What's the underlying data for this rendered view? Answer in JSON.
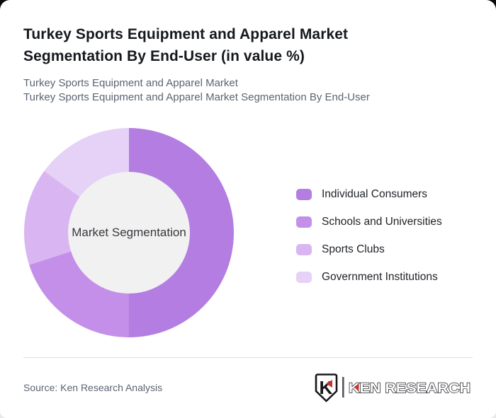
{
  "header": {
    "title": "Turkey Sports Equipment and Apparel Market Segmentation By End-User (in value %)",
    "subtitle_lines": [
      "Turkey Sports Equipment and Apparel Market",
      "Turkey Sports Equipment and Apparel Market Segmentation By End-User"
    ]
  },
  "chart_data": {
    "type": "pie",
    "variant": "donut",
    "title": "Turkey Sports Equipment and Apparel Market Segmentation By End-User (in value %)",
    "center_label": "Market Segmentation",
    "categories": [
      "Individual Consumers",
      "Schools and Universities",
      "Sports Clubs",
      "Government Institutions"
    ],
    "values": [
      50,
      20,
      15,
      15
    ],
    "unit": "value %",
    "colors": [
      "#b37de2",
      "#c48fe8",
      "#d9b6f1",
      "#e5d2f6"
    ],
    "start_angle_deg": 0,
    "direction": "clockwise",
    "inner_hole_color": "#f1f1f1",
    "legend_position": "right"
  },
  "footer": {
    "source": "Source: Ken Research Analysis",
    "logo": {
      "badge_letter": "K",
      "brand": "KEN RESEARCH",
      "accent_color": "#c5342d",
      "outline_color": "#26262c"
    }
  }
}
